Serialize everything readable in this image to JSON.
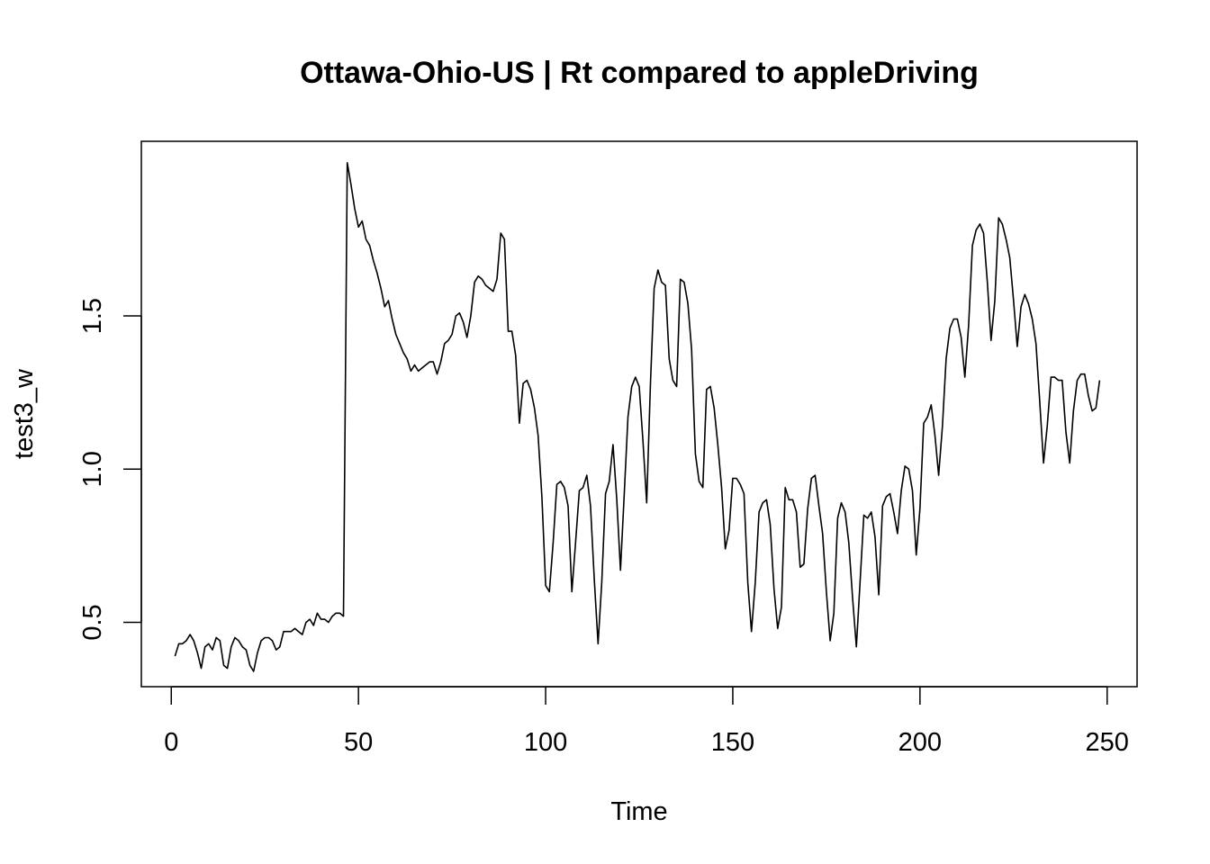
{
  "chart_data": {
    "type": "line",
    "title": "Ottawa-Ohio-US | Rt compared to appleDriving",
    "xlabel": "Time",
    "ylabel": "test3_w",
    "xlim": [
      -8,
      258
    ],
    "ylim": [
      0.29,
      2.07
    ],
    "x_ticks": [
      0,
      50,
      100,
      150,
      200,
      250
    ],
    "x_tick_labels": [
      "0",
      "50",
      "100",
      "150",
      "200",
      "250"
    ],
    "y_ticks": [
      0.5,
      1.0,
      1.5
    ],
    "y_tick_labels": [
      "0.5",
      "1.0",
      "1.5"
    ],
    "grid": false,
    "legend": "none",
    "line_color": "#000000",
    "x": [
      1,
      2,
      3,
      4,
      5,
      6,
      7,
      8,
      9,
      10,
      11,
      12,
      13,
      14,
      15,
      16,
      17,
      18,
      19,
      20,
      21,
      22,
      23,
      24,
      25,
      26,
      27,
      28,
      29,
      30,
      31,
      32,
      33,
      34,
      35,
      36,
      37,
      38,
      39,
      40,
      41,
      42,
      43,
      44,
      45,
      46,
      47,
      48,
      49,
      50,
      51,
      52,
      53,
      54,
      55,
      56,
      57,
      58,
      59,
      60,
      61,
      62,
      63,
      64,
      65,
      66,
      67,
      68,
      69,
      70,
      71,
      72,
      73,
      74,
      75,
      76,
      77,
      78,
      79,
      80,
      81,
      82,
      83,
      84,
      85,
      86,
      87,
      88,
      89,
      90,
      91,
      92,
      93,
      94,
      95,
      96,
      97,
      98,
      99,
      100,
      101,
      102,
      103,
      104,
      105,
      106,
      107,
      108,
      109,
      110,
      111,
      112,
      113,
      114,
      115,
      116,
      117,
      118,
      119,
      120,
      121,
      122,
      123,
      124,
      125,
      126,
      127,
      128,
      129,
      130,
      131,
      132,
      133,
      134,
      135,
      136,
      137,
      138,
      139,
      140,
      141,
      142,
      143,
      144,
      145,
      146,
      147,
      148,
      149,
      150,
      151,
      152,
      153,
      154,
      155,
      156,
      157,
      158,
      159,
      160,
      161,
      162,
      163,
      164,
      165,
      166,
      167,
      168,
      169,
      170,
      171,
      172,
      173,
      174,
      175,
      176,
      177,
      178,
      179,
      180,
      181,
      182,
      183,
      184,
      185,
      186,
      187,
      188,
      189,
      190,
      191,
      192,
      193,
      194,
      195,
      196,
      197,
      198,
      199,
      200,
      201,
      202,
      203,
      204,
      205,
      206,
      207,
      208,
      209,
      210,
      211,
      212,
      213,
      214,
      215,
      216,
      217,
      218,
      219,
      220,
      221,
      222,
      223,
      224,
      225,
      226,
      227,
      228,
      229,
      230,
      231,
      232,
      233,
      234,
      235,
      236,
      237,
      238,
      239,
      240,
      241,
      242,
      243,
      244,
      245,
      246,
      247,
      248
    ],
    "values": [
      0.39,
      0.43,
      0.43,
      0.44,
      0.46,
      0.44,
      0.4,
      0.35,
      0.42,
      0.43,
      0.41,
      0.45,
      0.44,
      0.36,
      0.35,
      0.42,
      0.45,
      0.44,
      0.42,
      0.41,
      0.36,
      0.34,
      0.4,
      0.44,
      0.45,
      0.45,
      0.44,
      0.41,
      0.42,
      0.47,
      0.47,
      0.47,
      0.48,
      0.47,
      0.46,
      0.5,
      0.51,
      0.49,
      0.53,
      0.51,
      0.51,
      0.5,
      0.52,
      0.53,
      0.53,
      0.52,
      2.0,
      1.93,
      1.85,
      1.79,
      1.81,
      1.75,
      1.73,
      1.68,
      1.64,
      1.59,
      1.53,
      1.55,
      1.49,
      1.44,
      1.41,
      1.38,
      1.36,
      1.32,
      1.34,
      1.32,
      1.33,
      1.34,
      1.35,
      1.35,
      1.31,
      1.35,
      1.41,
      1.42,
      1.44,
      1.5,
      1.51,
      1.48,
      1.43,
      1.5,
      1.61,
      1.63,
      1.62,
      1.6,
      1.59,
      1.58,
      1.62,
      1.77,
      1.75,
      1.45,
      1.45,
      1.37,
      1.15,
      1.28,
      1.29,
      1.26,
      1.2,
      1.11,
      0.91,
      0.62,
      0.6,
      0.76,
      0.95,
      0.96,
      0.94,
      0.88,
      0.6,
      0.76,
      0.93,
      0.94,
      0.98,
      0.88,
      0.64,
      0.43,
      0.63,
      0.92,
      0.96,
      1.08,
      0.9,
      0.67,
      0.92,
      1.17,
      1.27,
      1.3,
      1.27,
      1.09,
      0.89,
      1.28,
      1.59,
      1.65,
      1.61,
      1.6,
      1.36,
      1.29,
      1.27,
      1.62,
      1.61,
      1.54,
      1.39,
      1.05,
      0.96,
      0.94,
      1.26,
      1.27,
      1.2,
      1.08,
      0.94,
      0.74,
      0.8,
      0.97,
      0.97,
      0.95,
      0.92,
      0.63,
      0.47,
      0.63,
      0.86,
      0.89,
      0.9,
      0.82,
      0.61,
      0.48,
      0.55,
      0.94,
      0.9,
      0.9,
      0.86,
      0.68,
      0.69,
      0.87,
      0.97,
      0.98,
      0.88,
      0.79,
      0.6,
      0.44,
      0.53,
      0.84,
      0.89,
      0.86,
      0.76,
      0.58,
      0.42,
      0.63,
      0.85,
      0.84,
      0.86,
      0.78,
      0.59,
      0.88,
      0.91,
      0.92,
      0.86,
      0.79,
      0.93,
      1.01,
      1.0,
      0.93,
      0.72,
      0.87,
      1.15,
      1.17,
      1.21,
      1.11,
      0.98,
      1.14,
      1.36,
      1.46,
      1.49,
      1.49,
      1.43,
      1.3,
      1.47,
      1.73,
      1.78,
      1.8,
      1.77,
      1.61,
      1.42,
      1.55,
      1.82,
      1.8,
      1.75,
      1.69,
      1.55,
      1.4,
      1.53,
      1.57,
      1.54,
      1.49,
      1.41,
      1.22,
      1.02,
      1.14,
      1.3,
      1.3,
      1.29,
      1.29,
      1.12,
      1.02,
      1.19,
      1.29,
      1.31,
      1.31,
      1.24,
      1.19,
      1.2,
      1.29
    ]
  }
}
